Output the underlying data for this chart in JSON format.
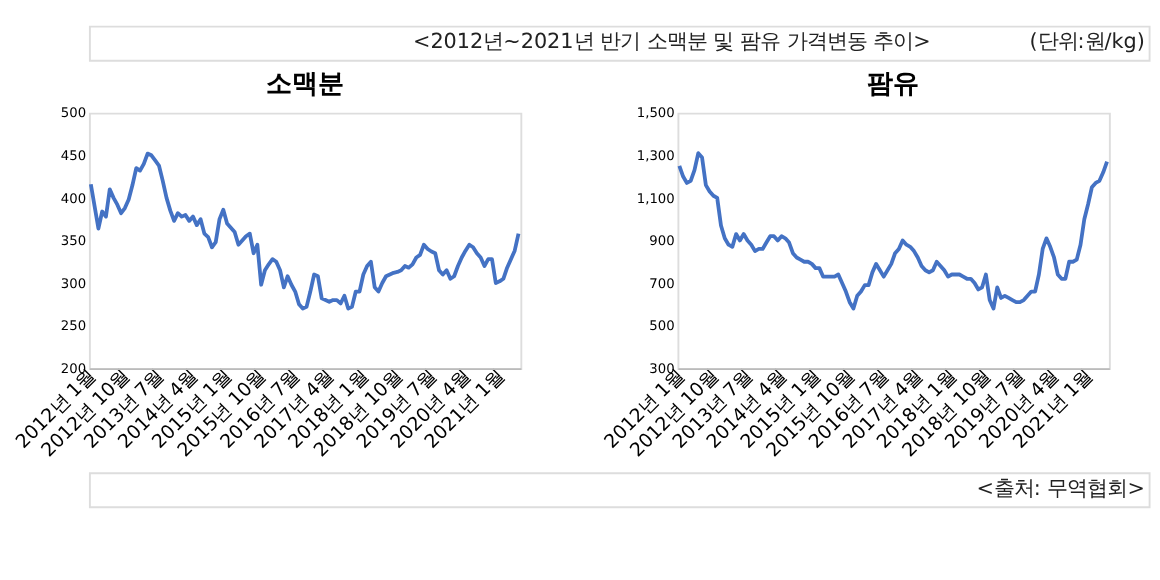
{
  "chart_data": [
    {
      "type": "line",
      "title": "소맥분",
      "annotations": [
        "<2012년~2021년 반기 소맥분 및 팜유 가격변동 추이>",
        "(단위:원/kg)"
      ],
      "categories": [
        "2012년 1월",
        null,
        null,
        null,
        null,
        null,
        null,
        null,
        null,
        "2012년 10월",
        null,
        null,
        null,
        null,
        null,
        null,
        null,
        null,
        "2013년 7월",
        null,
        null,
        null,
        null,
        null,
        null,
        null,
        null,
        "2014년 4월",
        null,
        null,
        null,
        null,
        null,
        null,
        null,
        null,
        "2015년 1월",
        null,
        null,
        null,
        null,
        null,
        null,
        null,
        null,
        "2015년 10월",
        null,
        null,
        null,
        null,
        null,
        null,
        null,
        null,
        "2016년 7월",
        null,
        null,
        null,
        null,
        null,
        null,
        null,
        null,
        "2017년 4월",
        null,
        null,
        null,
        null,
        null,
        null,
        null,
        null,
        "2018년 1월",
        null,
        null,
        null,
        null,
        null,
        null,
        null,
        null,
        "2018년 10월",
        null,
        null,
        null,
        null,
        null,
        null,
        null,
        null,
        "2019년 7월",
        null,
        null,
        null,
        null,
        null,
        null,
        null,
        null,
        "2020년 4월",
        null,
        null,
        null,
        null,
        null,
        null,
        null,
        null,
        "2021년 1월",
        null,
        null,
        null,
        null,
        null
      ],
      "series": [
        {
          "color": "#4472c4",
          "values": [
            416,
            390,
            364,
            384,
            378,
            410,
            400,
            392,
            382,
            388,
            398,
            415,
            435,
            432,
            440,
            452,
            450,
            444,
            438,
            420,
            400,
            385,
            373,
            382,
            378,
            380,
            373,
            378,
            368,
            375,
            358,
            354,
            342,
            348,
            375,
            386,
            370,
            365,
            360,
            345,
            350,
            355,
            358,
            335,
            345,
            298,
            315,
            322,
            328,
            325,
            315,
            295,
            308,
            298,
            290,
            275,
            270,
            272,
            290,
            310,
            308,
            282,
            280,
            278,
            280,
            280,
            276,
            285,
            270,
            272,
            290,
            290,
            310,
            320,
            325,
            295,
            290,
            300,
            308,
            310,
            312,
            313,
            315,
            320,
            318,
            322,
            330,
            333,
            345,
            340,
            337,
            335,
            315,
            310,
            315,
            305,
            308,
            320,
            330,
            338,
            345,
            342,
            335,
            330,
            320,
            328,
            328,
            300,
            302,
            305,
            318,
            328,
            338,
            358
          ]
        }
      ],
      "ylim": [
        200,
        500
      ],
      "yticks": [
        200,
        250,
        300,
        350,
        400,
        450,
        500
      ],
      "grid": false
    },
    {
      "type": "line",
      "title": "팜유",
      "annotations": [
        "<출처: 무역협회>"
      ],
      "categories": [
        "2012년 1월",
        null,
        null,
        null,
        null,
        null,
        null,
        null,
        null,
        "2012년 10월",
        null,
        null,
        null,
        null,
        null,
        null,
        null,
        null,
        "2013년 7월",
        null,
        null,
        null,
        null,
        null,
        null,
        null,
        null,
        "2014년 4월",
        null,
        null,
        null,
        null,
        null,
        null,
        null,
        null,
        "2015년 1월",
        null,
        null,
        null,
        null,
        null,
        null,
        null,
        null,
        "2015년 10월",
        null,
        null,
        null,
        null,
        null,
        null,
        null,
        null,
        "2016년 7월",
        null,
        null,
        null,
        null,
        null,
        null,
        null,
        null,
        "2017년 4월",
        null,
        null,
        null,
        null,
        null,
        null,
        null,
        null,
        "2018년 1월",
        null,
        null,
        null,
        null,
        null,
        null,
        null,
        null,
        "2018년 10월",
        null,
        null,
        null,
        null,
        null,
        null,
        null,
        null,
        "2019년 7월",
        null,
        null,
        null,
        null,
        null,
        null,
        null,
        null,
        "2020년 4월",
        null,
        null,
        null,
        null,
        null,
        null,
        null,
        null,
        "2021년 1월",
        null,
        null,
        null,
        null,
        null
      ],
      "series": [
        {
          "color": "#4472c4",
          "values": [
            1250,
            1200,
            1170,
            1180,
            1230,
            1310,
            1290,
            1160,
            1130,
            1110,
            1100,
            970,
            910,
            880,
            870,
            930,
            900,
            930,
            900,
            880,
            850,
            860,
            860,
            890,
            920,
            920,
            900,
            920,
            910,
            890,
            840,
            820,
            810,
            800,
            800,
            790,
            770,
            770,
            730,
            730,
            730,
            730,
            740,
            700,
            660,
            610,
            580,
            640,
            660,
            690,
            690,
            750,
            790,
            760,
            730,
            760,
            790,
            840,
            860,
            900,
            880,
            870,
            850,
            820,
            780,
            760,
            750,
            760,
            800,
            780,
            760,
            730,
            740,
            740,
            740,
            730,
            720,
            720,
            700,
            670,
            680,
            740,
            620,
            580,
            680,
            630,
            640,
            630,
            620,
            610,
            610,
            620,
            640,
            660,
            660,
            740,
            860,
            910,
            870,
            820,
            740,
            720,
            720,
            800,
            800,
            810,
            880,
            1000,
            1070,
            1150,
            1170,
            1180,
            1220,
            1270
          ]
        }
      ],
      "ylim": [
        300,
        1500
      ],
      "yticks": [
        300,
        500,
        700,
        900,
        {
          "value": 1100,
          "label": "1,100"
        },
        {
          "value": 1300,
          "label": "1,300"
        },
        {
          "value": 1500,
          "label": "1,500"
        }
      ],
      "grid": false
    }
  ]
}
